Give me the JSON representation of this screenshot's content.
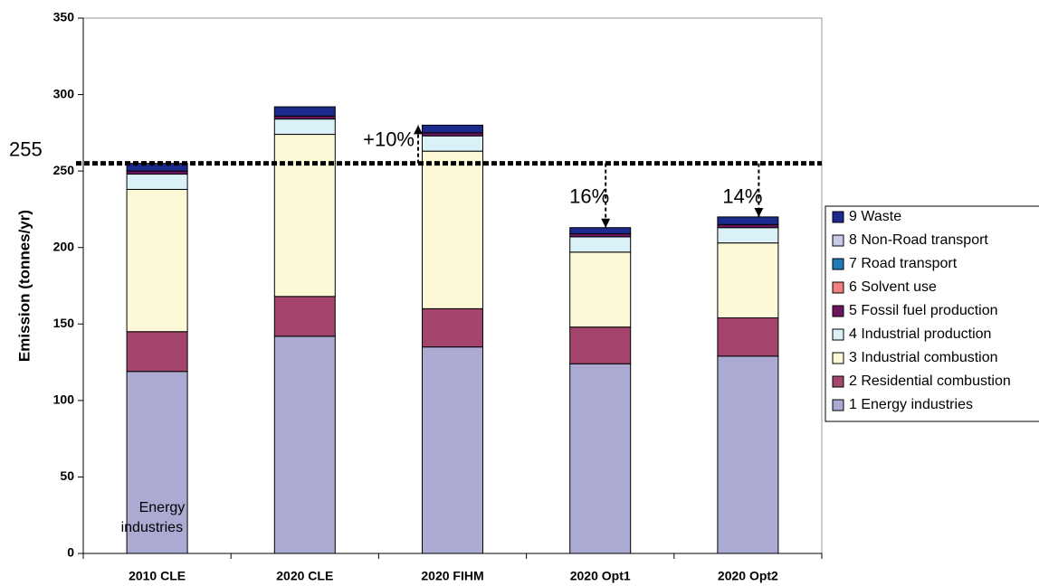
{
  "chart_data": {
    "type": "stacked_bar",
    "y_label": "Emission (tonnes/yr)",
    "categories": [
      "2010 CLE",
      "2020 CLE",
      "2020 FIHM",
      "2020 Opt1",
      "2020 Opt2"
    ],
    "series": [
      {
        "name": "1 Energy industries",
        "color": "#aaaad2",
        "values": [
          119,
          142,
          135,
          124,
          129
        ]
      },
      {
        "name": "2 Residential combustion",
        "color": "#a5456e",
        "values": [
          26,
          26,
          25,
          24,
          25
        ]
      },
      {
        "name": "3 Industrial combustion",
        "color": "#fdf9d7",
        "values": [
          93,
          106,
          103,
          49,
          49
        ]
      },
      {
        "name": "4 Industrial production",
        "color": "#daf2f7",
        "values": [
          10,
          10,
          10,
          10,
          10
        ]
      },
      {
        "name": "5 Fossil fuel production",
        "color": "#6b1560",
        "values": [
          2,
          2,
          2,
          2,
          2
        ]
      },
      {
        "name": "6 Solvent use",
        "color": "#f08080",
        "values": [
          0,
          0,
          0,
          0,
          0
        ]
      },
      {
        "name": "7 Road transport",
        "color": "#1f7ab5",
        "values": [
          0,
          0,
          0,
          0,
          0
        ]
      },
      {
        "name": "8 Non-Road transport",
        "color": "#c8c8e8",
        "values": [
          0,
          0,
          0,
          0,
          0
        ]
      },
      {
        "name": "9 Waste",
        "color": "#1b2a8c",
        "values": [
          5,
          6,
          5,
          4,
          5
        ]
      }
    ],
    "ylim": [
      0,
      350
    ],
    "yticks": [
      0,
      50,
      100,
      150,
      200,
      250,
      300,
      350
    ],
    "grid": false,
    "reference_line": 255,
    "annotations": [
      "+10%",
      "16%",
      "14%",
      "Energy",
      "industries"
    ]
  }
}
